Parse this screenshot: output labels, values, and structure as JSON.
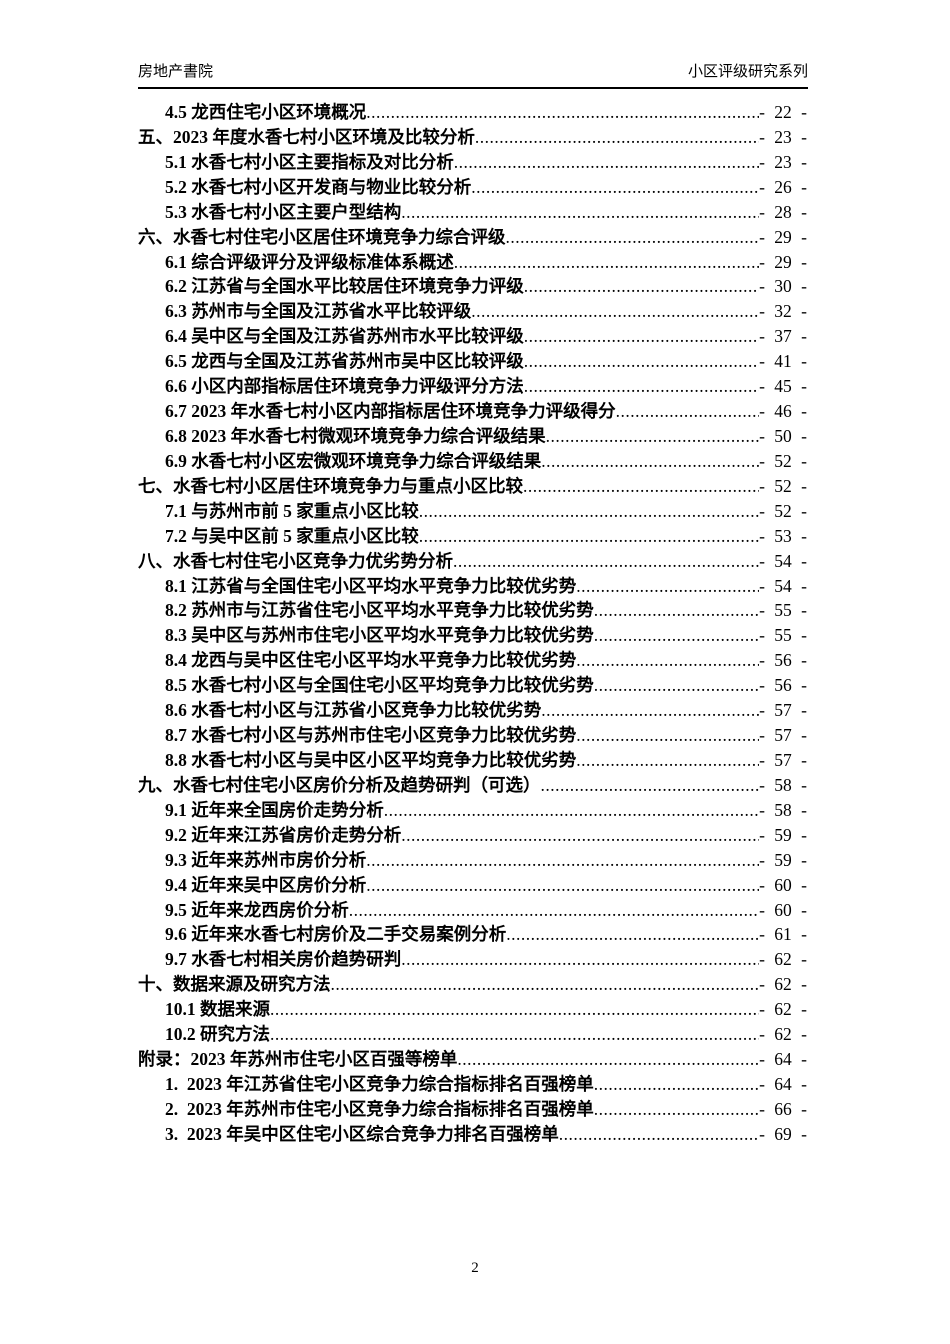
{
  "header": {
    "left": "房地产書院",
    "right": "小区评级研究系列"
  },
  "toc": {
    "entries": [
      {
        "level": 2,
        "label": "4.5 龙西住宅小区环境概况",
        "page": "- 22 -"
      },
      {
        "level": 1,
        "label": "五、2023 年度水香七村小区环境及比较分析",
        "page": "- 23 -"
      },
      {
        "level": 2,
        "label": "5.1 水香七村小区主要指标及对比分析",
        "page": "- 23 -"
      },
      {
        "level": 2,
        "label": "5.2 水香七村小区开发商与物业比较分析",
        "page": "- 26 -"
      },
      {
        "level": 2,
        "label": "5.3 水香七村小区主要户型结构",
        "page": "- 28 -"
      },
      {
        "level": 1,
        "label": "六、水香七村住宅小区居住环境竞争力综合评级",
        "page": "- 29 -"
      },
      {
        "level": 2,
        "label": "6.1 综合评级评分及评级标准体系概述",
        "page": "- 29 -"
      },
      {
        "level": 2,
        "label": "6.2 江苏省与全国水平比较居住环境竞争力评级",
        "page": "- 30 -"
      },
      {
        "level": 2,
        "label": "6.3 苏州市与全国及江苏省水平比较评级",
        "page": "- 32 -"
      },
      {
        "level": 2,
        "label": "6.4 吴中区与全国及江苏省苏州市水平比较评级",
        "page": "- 37 -"
      },
      {
        "level": 2,
        "label": "6.5 龙西与全国及江苏省苏州市吴中区比较评级",
        "page": "- 41 -"
      },
      {
        "level": 2,
        "label": "6.6 小区内部指标居住环境竞争力评级评分方法",
        "page": "- 45 -"
      },
      {
        "level": 2,
        "label": "6.7 2023 年水香七村小区内部指标居住环境竞争力评级得分",
        "page": "- 46 -"
      },
      {
        "level": 2,
        "label": "6.8 2023 年水香七村微观环境竞争力综合评级结果",
        "page": "- 50 -"
      },
      {
        "level": 2,
        "label": "6.9 水香七村小区宏微观环境竞争力综合评级结果",
        "page": "- 52 -"
      },
      {
        "level": 1,
        "label": "七、水香七村小区居住环境竞争力与重点小区比较",
        "page": "- 52 -"
      },
      {
        "level": 2,
        "label": "7.1 与苏州市前 5 家重点小区比较",
        "page": "- 52 -"
      },
      {
        "level": 2,
        "label": "7.2 与吴中区前 5 家重点小区比较",
        "page": "- 53 -"
      },
      {
        "level": 1,
        "label": "八、水香七村住宅小区竞争力优劣势分析",
        "page": "- 54 -"
      },
      {
        "level": 2,
        "label": "8.1 江苏省与全国住宅小区平均水平竞争力比较优劣势",
        "page": "- 54 -"
      },
      {
        "level": 2,
        "label": "8.2 苏州市与江苏省住宅小区平均水平竞争力比较优劣势",
        "page": "- 55 -"
      },
      {
        "level": 2,
        "label": "8.3 吴中区与苏州市住宅小区平均水平竞争力比较优劣势",
        "page": "- 55 -"
      },
      {
        "level": 2,
        "label": "8.4 龙西与吴中区住宅小区平均水平竞争力比较优劣势",
        "page": "- 56 -"
      },
      {
        "level": 2,
        "label": "8.5 水香七村小区与全国住宅小区平均竞争力比较优劣势",
        "page": "- 56 -"
      },
      {
        "level": 2,
        "label": "8.6 水香七村小区与江苏省小区竞争力比较优劣势",
        "page": "- 57 -"
      },
      {
        "level": 2,
        "label": "8.7 水香七村小区与苏州市住宅小区竞争力比较优劣势",
        "page": "- 57 -"
      },
      {
        "level": 2,
        "label": "8.8 水香七村小区与吴中区小区平均竞争力比较优劣势",
        "page": "- 57 -"
      },
      {
        "level": 1,
        "label": "九、水香七村住宅小区房价分析及趋势研判（可选）",
        "page": "- 58 -"
      },
      {
        "level": 2,
        "label": "9.1 近年来全国房价走势分析",
        "page": "- 58 -"
      },
      {
        "level": 2,
        "label": "9.2 近年来江苏省房价走势分析",
        "page": "- 59 -"
      },
      {
        "level": 2,
        "label": "9.3 近年来苏州市房价分析",
        "page": "- 59 -"
      },
      {
        "level": 2,
        "label": "9.4 近年来吴中区房价分析",
        "page": "- 60 -"
      },
      {
        "level": 2,
        "label": "9.5 近年来龙西房价分析",
        "page": "- 60 -"
      },
      {
        "level": 2,
        "label": "9.6 近年来水香七村房价及二手交易案例分析",
        "page": "- 61 -"
      },
      {
        "level": 2,
        "label": "9.7 水香七村相关房价趋势研判",
        "page": "- 62 -"
      },
      {
        "level": 1,
        "label": "十、数据来源及研究方法",
        "page": "- 62 -"
      },
      {
        "level": 2,
        "label": "10.1 数据来源",
        "page": "- 62 -"
      },
      {
        "level": 2,
        "label": "10.2 研究方法",
        "page": "- 62 -"
      },
      {
        "level": 1,
        "label": "附录：2023 年苏州市住宅小区百强等榜单",
        "page": "- 64 -"
      },
      {
        "level": 2,
        "label": "1.  2023 年江苏省住宅小区竞争力综合指标排名百强榜单",
        "page": "- 64 -"
      },
      {
        "level": 2,
        "label": "2.  2023 年苏州市住宅小区竞争力综合指标排名百强榜单",
        "page": "- 66 -"
      },
      {
        "level": 2,
        "label": "3.  2023 年吴中区住宅小区综合竞争力排名百强榜单",
        "page": "- 69 -"
      }
    ]
  },
  "footer": {
    "page_number": "2"
  }
}
